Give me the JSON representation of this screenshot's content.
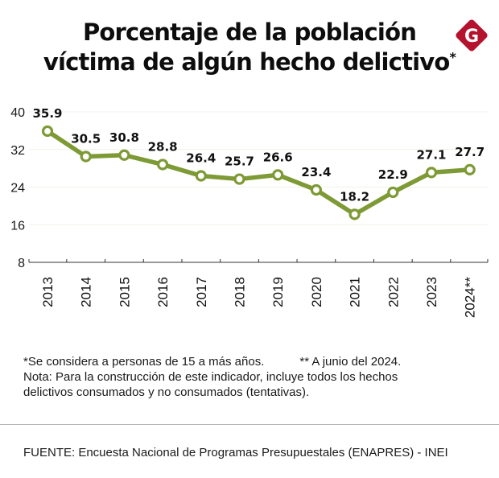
{
  "header": {
    "title_line1": "Porcentaje de la población",
    "title_line2": "víctima de algún hecho delictivo",
    "title_marker": "*",
    "logo": {
      "icon": "gestion-g-logo-icon",
      "letter": "G",
      "color": "#b5122e"
    }
  },
  "chart_data": {
    "type": "line",
    "title": "Porcentaje de la población víctima de algún hecho delictivo*",
    "xlabel": "",
    "ylabel": "",
    "categories": [
      "2013",
      "2014",
      "2015",
      "2016",
      "2017",
      "2018",
      "2019",
      "2020",
      "2021",
      "2022",
      "2023",
      "2024**"
    ],
    "series": [
      {
        "name": "Población víctima (%)",
        "values": [
          35.9,
          30.5,
          30.8,
          28.8,
          26.4,
          25.7,
          26.6,
          23.4,
          18.2,
          22.9,
          27.1,
          27.7
        ],
        "labels": [
          "35.9",
          "30.5",
          "30.8",
          "28.8",
          "26.4",
          "25.7",
          "26.6",
          "23.4",
          "18.2",
          "22.9",
          "27.1",
          "27.7"
        ],
        "color": "#7d9a35"
      }
    ],
    "ylim": [
      8,
      40
    ],
    "yticks": [
      8,
      16,
      24,
      32,
      40
    ],
    "ytick_labels": [
      "8",
      "16",
      "24",
      "32",
      "40"
    ],
    "grid": true,
    "legend": "none"
  },
  "notes": {
    "footnote1": "*Se considera a personas de 15 a más años.",
    "footnote2": "** A junio del 2024.",
    "note_line1": "Nota: Para la construcción de este indicador, incluye todos los hechos",
    "note_line2": "delictivos consumados y no consumados (tentativas)."
  },
  "source": "FUENTE:  Encuesta Nacional de Programas Presupuestales (ENAPRES) - INEI"
}
